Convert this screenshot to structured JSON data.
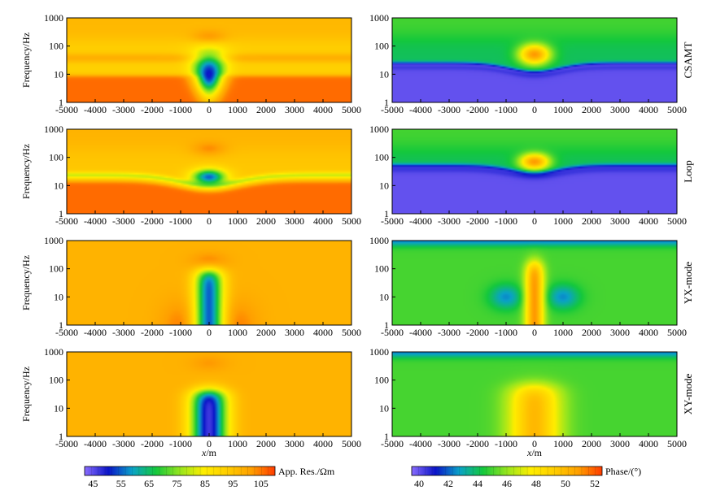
{
  "chart_data": [
    {
      "type": "heatmap",
      "row": "CSAMT",
      "quantity": "apparent resistivity",
      "xlabel": "",
      "ylabel": "Frequency/Hz",
      "xlim": [
        -5000,
        5000
      ],
      "ylim": [
        1,
        1000
      ],
      "yscale": "log",
      "x_ticks": [
        "-5000",
        "-4000",
        "-3000",
        "-2000",
        "-1000",
        "0",
        "1000",
        "2000",
        "3000",
        "4000",
        "5000"
      ],
      "y_ticks": [
        "1",
        "10",
        "100",
        "1000"
      ],
      "features": {
        "background": 92,
        "high_freq_band_value": 97,
        "low_freq_layer_value": 106,
        "layer_boundary_hz_edge": 9,
        "anomaly_center_x": 0,
        "anomaly_min_value": 50,
        "anomaly_center_hz": 10,
        "bump_top_hz": 200,
        "bump_value": 101
      }
    },
    {
      "type": "heatmap",
      "row": "CSAMT",
      "quantity": "phase",
      "xlabel": "",
      "ylabel": "",
      "xlim": [
        -5000,
        5000
      ],
      "ylim": [
        1,
        1000
      ],
      "yscale": "log",
      "x_ticks": [
        "-5000",
        "-4000",
        "-3000",
        "-2000",
        "-1000",
        "0",
        "1000",
        "2000",
        "3000",
        "4000",
        "5000"
      ],
      "y_ticks": [
        "1",
        "10",
        "100",
        "1000"
      ],
      "features": {
        "background": 44,
        "low_freq_value": 40,
        "low_band_hz": 20,
        "anomaly_center_x": 0,
        "anomaly_max_value": 51,
        "anomaly_center_hz": 50
      }
    },
    {
      "type": "heatmap",
      "row": "Loop",
      "quantity": "apparent resistivity",
      "xlabel": "",
      "ylabel": "Frequency/Hz",
      "xlim": [
        -5000,
        5000
      ],
      "ylim": [
        1,
        1000
      ],
      "yscale": "log",
      "x_ticks": [
        "-5000",
        "-4000",
        "-3000",
        "-2000",
        "-1000",
        "0",
        "1000",
        "2000",
        "3000",
        "4000",
        "5000"
      ],
      "y_ticks": [
        "1",
        "10",
        "100",
        "1000"
      ],
      "features": {
        "background": 94,
        "low_freq_layer_value": 106,
        "layer_boundary_hz_center": 10,
        "layer_boundary_hz_edge": 14,
        "green_band_hz": 20,
        "anomaly_center_x": 0,
        "anomaly_min_value": 55,
        "anomaly_center_hz": 20,
        "bump_top_hz": 200,
        "bump_value": 101
      }
    },
    {
      "type": "heatmap",
      "row": "Loop",
      "quantity": "phase",
      "xlabel": "",
      "ylabel": "",
      "xlim": [
        -5000,
        5000
      ],
      "ylim": [
        1,
        1000
      ],
      "yscale": "log",
      "x_ticks": [
        "-5000",
        "-4000",
        "-3000",
        "-2000",
        "-1000",
        "0",
        "1000",
        "2000",
        "3000",
        "4000",
        "5000"
      ],
      "y_ticks": [
        "1",
        "10",
        "100",
        "1000"
      ],
      "features": {
        "background": 44,
        "low_freq_value": 40,
        "low_band_hz": 40,
        "anomaly_center_x": 0,
        "anomaly_max_value": 51,
        "anomaly_center_hz": 70
      }
    },
    {
      "type": "heatmap",
      "row": "YX-mode",
      "quantity": "apparent resistivity",
      "xlabel": "",
      "ylabel": "Frequency/Hz",
      "xlim": [
        -5000,
        5000
      ],
      "ylim": [
        1,
        1000
      ],
      "yscale": "log",
      "x_ticks": [
        "-5000",
        "-4000",
        "-3000",
        "-2000",
        "-1000",
        "0",
        "1000",
        "2000",
        "3000",
        "4000",
        "5000"
      ],
      "y_ticks": [
        "1",
        "10",
        "100",
        "1000"
      ],
      "features": {
        "background": 98,
        "anomaly_center_x": 0,
        "anomaly_min_value": 55,
        "anomaly_width_m": 700,
        "anomaly_top_hz": 80,
        "side_lobe_x": 1000,
        "side_lobe_value": 104,
        "bump_top_hz": 200,
        "bump_value": 104
      }
    },
    {
      "type": "heatmap",
      "row": "YX-mode",
      "quantity": "phase",
      "xlabel": "",
      "ylabel": "",
      "xlim": [
        -5000,
        5000
      ],
      "ylim": [
        1,
        1000
      ],
      "yscale": "log",
      "x_ticks": [
        "-5000",
        "-4000",
        "-3000",
        "-2000",
        "-1000",
        "0",
        "1000",
        "2000",
        "3000",
        "4000",
        "5000"
      ],
      "y_ticks": [
        "1",
        "10",
        "100",
        "1000"
      ],
      "features": {
        "background": 45,
        "high_freq_value": 42,
        "anomaly_center_x": 0,
        "anomaly_max_value": 51,
        "anomaly_width_m": 500,
        "anomaly_top_hz": 150,
        "side_lobe_x": 1000,
        "side_lobe_value": 42.5
      }
    },
    {
      "type": "heatmap",
      "row": "XY-mode",
      "quantity": "apparent resistivity",
      "xlabel": "x/m",
      "ylabel": "Frequency/Hz",
      "xlim": [
        -5000,
        5000
      ],
      "ylim": [
        1,
        1000
      ],
      "yscale": "log",
      "x_ticks": [
        "-5000",
        "-4000",
        "-3000",
        "-2000",
        "-1000",
        "0",
        "1000",
        "2000",
        "3000",
        "4000",
        "5000"
      ],
      "y_ticks": [
        "1",
        "10",
        "100",
        "1000"
      ],
      "features": {
        "background": 98,
        "anomaly_center_x": 0,
        "anomaly_min_value": 47,
        "anomaly_width_m": 900,
        "anomaly_top_hz": 40,
        "bump_top_hz": 400,
        "bump_value": 102
      }
    },
    {
      "type": "heatmap",
      "row": "XY-mode",
      "quantity": "phase",
      "xlabel": "x/m",
      "ylabel": "",
      "xlim": [
        -5000,
        5000
      ],
      "ylim": [
        1,
        1000
      ],
      "yscale": "log",
      "x_ticks": [
        "-5000",
        "-4000",
        "-3000",
        "-2000",
        "-1000",
        "0",
        "1000",
        "2000",
        "3000",
        "4000",
        "5000"
      ],
      "y_ticks": [
        "1",
        "10",
        "100",
        "1000"
      ],
      "features": {
        "background": 45,
        "high_freq_value": 42,
        "anomaly_center_x": 0,
        "anomaly_max_value": 50,
        "anomaly_width_m": 1400,
        "anomaly_top_hz": 60
      }
    }
  ],
  "row_labels": [
    "CSAMT",
    "Loop",
    "YX-mode",
    "XY-mode"
  ],
  "colorbars": {
    "resistivity": {
      "label": "App. Res./Ωm",
      "ticks": [
        "45",
        "55",
        "65",
        "75",
        "85",
        "95",
        "105"
      ],
      "min": 42,
      "max": 110
    },
    "phase": {
      "label": "Phase/(°)",
      "ticks": [
        "40",
        "42",
        "44",
        "46",
        "48",
        "50",
        "52"
      ],
      "min": 39.5,
      "max": 52.5
    }
  },
  "colormap": [
    "#8a6cff",
    "#0a14c8",
    "#0aa2c8",
    "#14c83c",
    "#96e61e",
    "#ffee00",
    "#ffcd00",
    "#ffa000",
    "#ff3c00"
  ]
}
